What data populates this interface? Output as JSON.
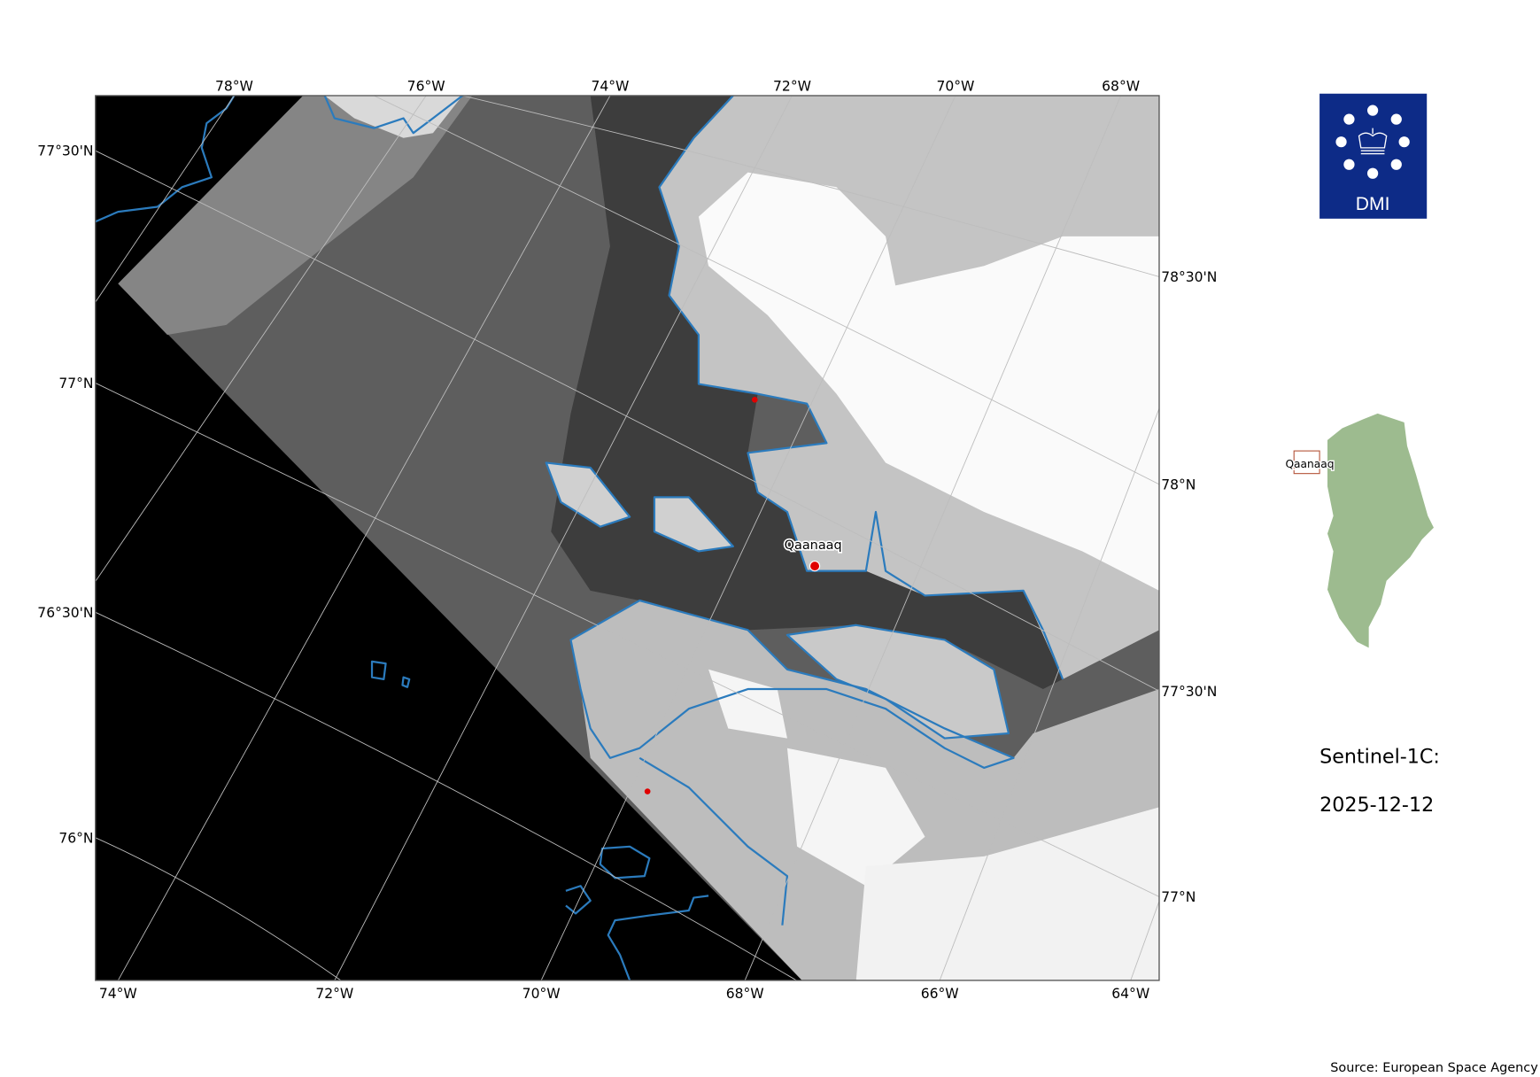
{
  "map": {
    "top_lon_labels": [
      "78°W",
      "76°W",
      "74°W",
      "72°W",
      "70°W",
      "68°W"
    ],
    "bottom_lon_labels": [
      "74°W",
      "72°W",
      "70°W",
      "68°W",
      "66°W",
      "64°W"
    ],
    "left_lat_labels": [
      "77°30'N",
      "77°N",
      "76°30'N",
      "76°N"
    ],
    "right_lat_labels": [
      "78°30'N",
      "78°N",
      "77°30'N",
      "77°N"
    ],
    "place_label": "Qaanaaq",
    "coastline_color": "#2b7bbd",
    "marker_color": "#e00000"
  },
  "logo": {
    "text": "DMI",
    "color": "#0d2b87"
  },
  "inset": {
    "place_label": "Qaanaaq",
    "land_color": "#9dbb8f",
    "box_color": "#b5543a"
  },
  "info": {
    "satellite": "Sentinel-1C:",
    "date": "2025-12-12"
  },
  "footer": {
    "source": "Source: European Space Agency"
  }
}
